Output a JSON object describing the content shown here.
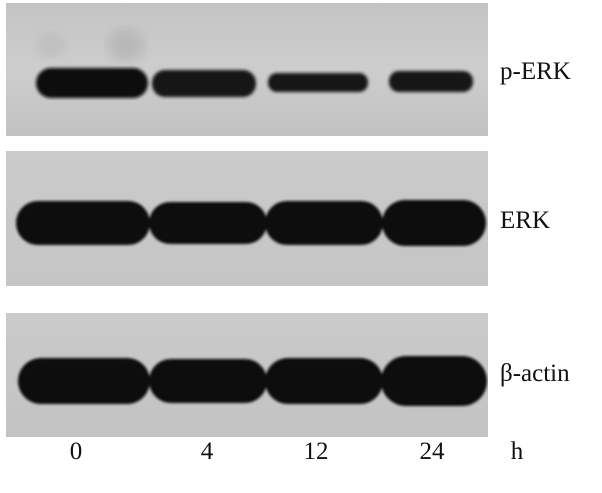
{
  "blot": {
    "panels": [
      {
        "label": "p-ERK",
        "band_intensity": [
          1.0,
          0.9,
          0.65,
          0.6
        ]
      },
      {
        "label": "ERK",
        "band_intensity": [
          1.0,
          1.0,
          1.0,
          1.0
        ]
      },
      {
        "label": "β-actin",
        "band_intensity": [
          1.0,
          1.0,
          1.0,
          1.0
        ]
      }
    ],
    "time_points": [
      "0",
      "4",
      "12",
      "24"
    ],
    "time_unit": "h",
    "colors": {
      "membrane": "#c7c7c7",
      "band": "#101010",
      "text": "#111111"
    }
  }
}
